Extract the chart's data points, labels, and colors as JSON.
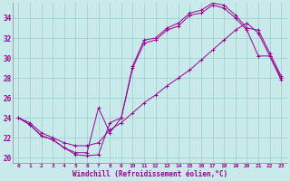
{
  "xlabel": "Windchill (Refroidissement éolien,°C)",
  "bg_color": "#c8eaea",
  "line_color": "#990099",
  "grid_color": "#99cccc",
  "xlim": [
    -0.5,
    23.5
  ],
  "ylim": [
    19.5,
    35.5
  ],
  "yticks": [
    20,
    22,
    24,
    26,
    28,
    30,
    32,
    34
  ],
  "xticks": [
    0,
    1,
    2,
    3,
    4,
    5,
    6,
    7,
    8,
    9,
    10,
    11,
    12,
    13,
    14,
    15,
    16,
    17,
    18,
    19,
    20,
    21,
    22,
    23
  ],
  "series": [
    [
      24.0,
      23.3,
      22.2,
      21.8,
      21.0,
      20.3,
      20.2,
      20.3,
      23.5,
      24.0,
      29.0,
      31.5,
      31.8,
      32.8,
      33.2,
      34.3,
      34.5,
      35.3,
      35.0,
      34.0,
      32.8,
      30.2,
      30.2,
      28.0
    ],
    [
      24.0,
      23.3,
      22.2,
      21.8,
      21.0,
      20.5,
      20.5,
      25.0,
      22.5,
      24.0,
      29.2,
      31.8,
      32.0,
      33.0,
      33.5,
      34.5,
      34.8,
      35.5,
      35.3,
      34.3,
      33.0,
      32.8,
      30.5,
      28.2
    ],
    [
      24.0,
      23.5,
      22.5,
      22.0,
      21.5,
      21.2,
      21.2,
      21.5,
      22.8,
      23.5,
      24.5,
      25.5,
      26.3,
      27.2,
      28.0,
      28.8,
      29.8,
      30.8,
      31.8,
      32.8,
      33.5,
      32.5,
      30.2,
      27.8
    ]
  ]
}
